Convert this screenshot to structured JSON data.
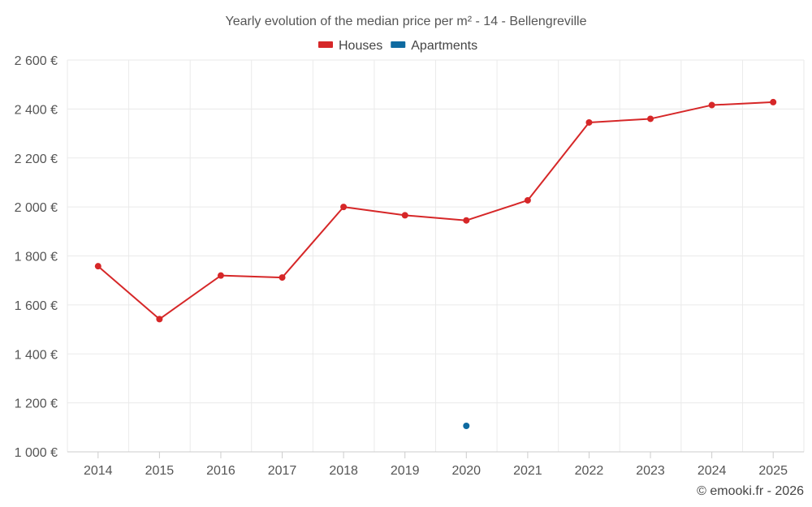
{
  "chart_data": {
    "type": "line",
    "title": "Yearly evolution of the median price per m² - 14 - Bellengreville",
    "categories": [
      "2014",
      "2015",
      "2016",
      "2017",
      "2018",
      "2019",
      "2020",
      "2021",
      "2022",
      "2023",
      "2024",
      "2025"
    ],
    "series": [
      {
        "name": "Houses",
        "color": "#d62728",
        "values": [
          1758,
          1542,
          1720,
          1712,
          2000,
          1966,
          1945,
          2027,
          2345,
          2360,
          2416,
          2428
        ]
      },
      {
        "name": "Apartments",
        "color": "#0e6aa0",
        "values": [
          null,
          null,
          null,
          null,
          null,
          null,
          1106,
          null,
          null,
          null,
          null,
          null
        ]
      }
    ],
    "ylim": [
      1000,
      2600
    ],
    "yticks": [
      1000,
      1200,
      1400,
      1600,
      1800,
      2000,
      2200,
      2400,
      2600
    ],
    "ytick_labels": [
      "1 000 €",
      "1 200 €",
      "1 400 €",
      "1 600 €",
      "1 800 €",
      "2 000 €",
      "2 200 €",
      "2 400 €",
      "2 600 €"
    ],
    "xlabel": "",
    "ylabel": "",
    "grid": true,
    "legend_position": "top-center"
  },
  "credit": "© emooki.fr - 2026"
}
